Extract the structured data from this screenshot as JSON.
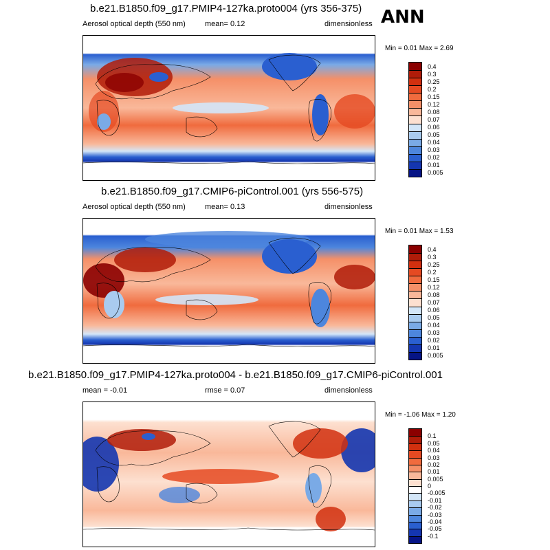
{
  "season": "ANN",
  "panels": [
    {
      "title": "b.e21.B1850.f09_g17.PMIP4-127ka.proto004 (yrs 356-375)",
      "left_label": "Aerosol optical depth (550 nm)",
      "center_label": "mean=   0.12",
      "right_label": "dimensionless",
      "minmax": "Min =   0.01 Max =   2.69",
      "levels": [
        "0.4",
        "0.3",
        "0.25",
        "0.2",
        "0.15",
        "0.12",
        "0.08",
        "0.07",
        "0.06",
        "0.05",
        "0.04",
        "0.03",
        "0.02",
        "0.01",
        "0.005"
      ],
      "colors": [
        "#8b0000",
        "#b01c09",
        "#d1300f",
        "#e54a22",
        "#f06b3e",
        "#f59068",
        "#f9b89a",
        "#fde0d0",
        "#d3e6f8",
        "#a9cbef",
        "#7aaae6",
        "#4d86dd",
        "#2a5fd0",
        "#1436b0",
        "#061485"
      ]
    },
    {
      "title": "b.e21.B1850.f09_g17.CMIP6-piControl.001 (yrs 556-575)",
      "left_label": "Aerosol optical depth (550 nm)",
      "center_label": "mean=   0.13",
      "right_label": "dimensionless",
      "minmax": "Min =   0.01 Max =   1.53",
      "levels": [
        "0.4",
        "0.3",
        "0.25",
        "0.2",
        "0.15",
        "0.12",
        "0.08",
        "0.07",
        "0.06",
        "0.05",
        "0.04",
        "0.03",
        "0.02",
        "0.01",
        "0.005"
      ],
      "colors": [
        "#8b0000",
        "#b01c09",
        "#d1300f",
        "#e54a22",
        "#f06b3e",
        "#f59068",
        "#f9b89a",
        "#fde0d0",
        "#d3e6f8",
        "#a9cbef",
        "#7aaae6",
        "#4d86dd",
        "#2a5fd0",
        "#1436b0",
        "#061485"
      ]
    },
    {
      "title": "b.e21.B1850.f09_g17.PMIP4-127ka.proto004 - b.e21.B1850.f09_g17.CMIP6-piControl.001",
      "left_label": "mean =  -0.01",
      "center_label": "rmse =   0.07",
      "right_label": "dimensionless",
      "minmax": "Min =  -1.06 Max =   1.20",
      "levels": [
        "0.1",
        "0.05",
        "0.04",
        "0.03",
        "0.02",
        "0.01",
        "0.005",
        "0",
        "-0.005",
        "-0.01",
        "-0.02",
        "-0.03",
        "-0.04",
        "-0.05",
        "-0.1"
      ],
      "colors": [
        "#8b0000",
        "#b01c09",
        "#d1300f",
        "#e54a22",
        "#f06b3e",
        "#f59068",
        "#f9b89a",
        "#fde0d0",
        "#ffffff",
        "#d3e6f8",
        "#a9cbef",
        "#7aaae6",
        "#4d86dd",
        "#2a5fd0",
        "#1436b0",
        "#061485"
      ]
    }
  ]
}
